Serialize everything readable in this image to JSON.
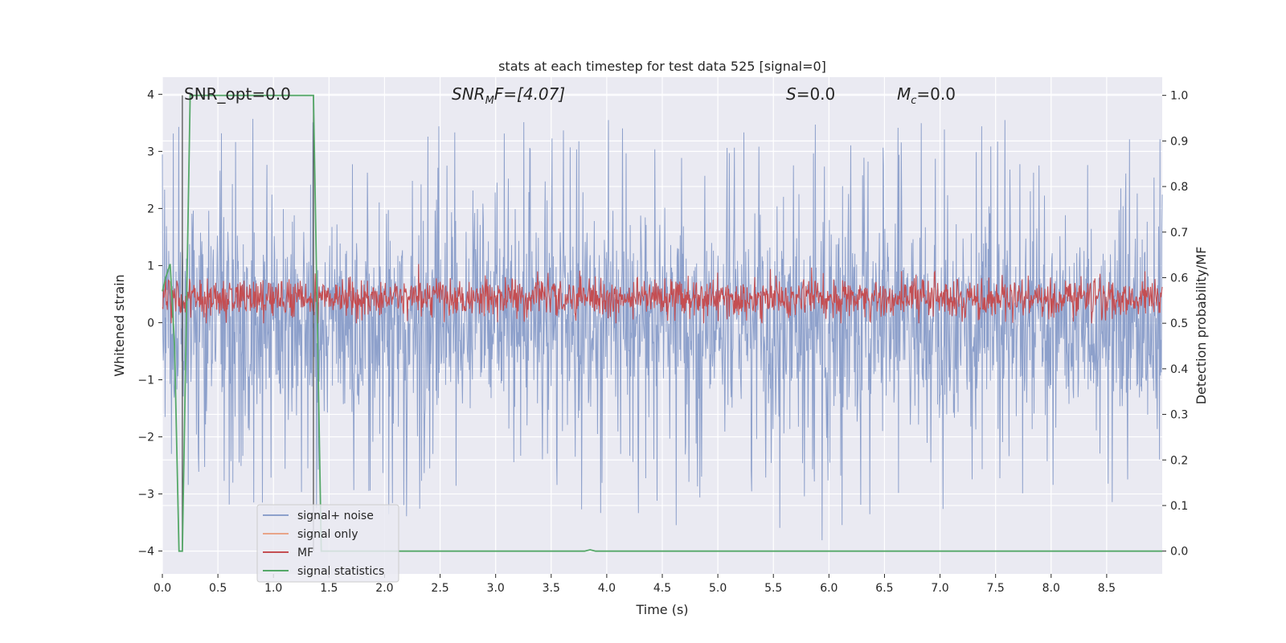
{
  "chart_data": {
    "type": "line",
    "title": "stats at each timestep for test data 525 [signal=0]",
    "xlabel": "Time (s)",
    "ylabel_left": "Whitened strain",
    "ylabel_right": "Detection probability/MF",
    "xlim": [
      0,
      9.0
    ],
    "ylim_left": [
      -4.4,
      4.3
    ],
    "ylim_right": [
      -0.05,
      1.04
    ],
    "x_ticks": [
      "0.0",
      "0.5",
      "1.0",
      "1.5",
      "2.0",
      "2.5",
      "3.0",
      "3.5",
      "4.0",
      "4.5",
      "5.0",
      "5.5",
      "6.0",
      "6.5",
      "7.0",
      "7.5",
      "8.0",
      "8.5"
    ],
    "y_ticks_left": [
      "4",
      "3",
      "2",
      "1",
      "0",
      "−1",
      "−2",
      "−3",
      "−4"
    ],
    "y_ticks_left_values": [
      4,
      3,
      2,
      1,
      0,
      -1,
      -2,
      -3,
      -4
    ],
    "y_ticks_right": [
      "1.0",
      "0.9",
      "0.8",
      "0.7",
      "0.6",
      "0.5",
      "0.4",
      "0.3",
      "0.2",
      "0.1",
      "0.0"
    ],
    "y_ticks_right_values": [
      1.0,
      0.9,
      0.8,
      0.7,
      0.6,
      0.5,
      0.4,
      0.3,
      0.2,
      0.1,
      0.0
    ],
    "annotations": {
      "snr_opt": "SNR_opt=0.0",
      "snr_mf_sym": "SNR",
      "snr_mf_sub": "M",
      "snr_mf_rest": "F=[4.07]",
      "s_sym": "S",
      "s_rest": "=0.0",
      "mc_sym": "M",
      "mc_sub": "c",
      "mc_rest": "=0.0"
    },
    "grid": true,
    "legend_position": "lower-left",
    "series": [
      {
        "name": "signal+ noise",
        "color": "#8da0cb",
        "axis": "left",
        "noise_amplitude": 1.6,
        "peak_max": 3.9,
        "peak_min": -4.0
      },
      {
        "name": "signal only",
        "color": "#e8a489",
        "axis": "left",
        "values": [
          0
        ]
      },
      {
        "name": "MF",
        "color": "#c44e52",
        "axis": "right",
        "range": [
          0.5,
          0.63
        ]
      },
      {
        "name": "signal statistics",
        "color": "#55a868",
        "axis": "right",
        "x": [
          0.0,
          0.03,
          0.07,
          0.11,
          0.15,
          0.18,
          0.25,
          1.36,
          1.43,
          1.5,
          3.8,
          3.85,
          3.9,
          9.0
        ],
        "values": [
          0.57,
          0.6,
          0.63,
          0.45,
          0.0,
          0.0,
          1.0,
          1.0,
          0.0,
          0.0,
          0.0,
          0.003,
          0.0,
          0.0
        ]
      }
    ],
    "marker_lines": [
      {
        "x": 0.18,
        "color": "#555555"
      },
      {
        "x": 1.36,
        "color": "#555555"
      }
    ]
  }
}
